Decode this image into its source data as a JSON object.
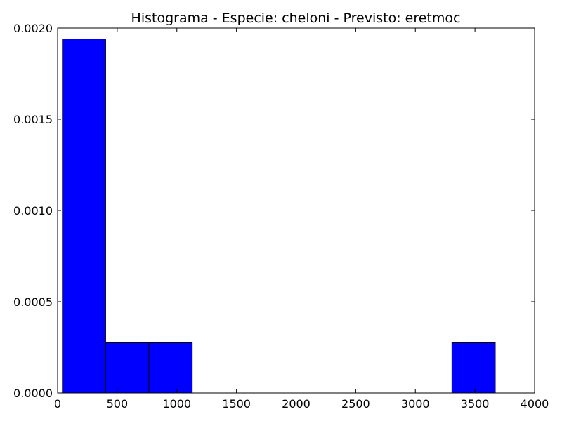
{
  "chart_data": {
    "type": "bar",
    "title": "Histograma - Especie: cheloni - Previsto: eretmoc",
    "xlabel": "",
    "ylabel": "",
    "xlim": [
      0,
      4000
    ],
    "ylim": [
      0,
      0.002
    ],
    "x_ticks": [
      0,
      500,
      1000,
      1500,
      2000,
      2500,
      3000,
      3500,
      4000
    ],
    "x_tick_labels": [
      "0",
      "500",
      "1000",
      "1500",
      "2000",
      "2500",
      "3000",
      "3500",
      "4000"
    ],
    "y_ticks": [
      0,
      0.0005,
      0.001,
      0.0015,
      0.002
    ],
    "y_tick_labels": [
      "0.0000",
      "0.0005",
      "0.0010",
      "0.0015",
      "0.0020"
    ],
    "grid": false,
    "bar_color": "#0000ff",
    "edge_color": "#000000",
    "bins": [
      {
        "start": 40,
        "end": 403,
        "value": 0.00194
      },
      {
        "start": 403,
        "end": 766,
        "value": 0.000275
      },
      {
        "start": 766,
        "end": 1129,
        "value": 0.000275
      },
      {
        "start": 3307,
        "end": 3670,
        "value": 0.000275
      }
    ]
  }
}
